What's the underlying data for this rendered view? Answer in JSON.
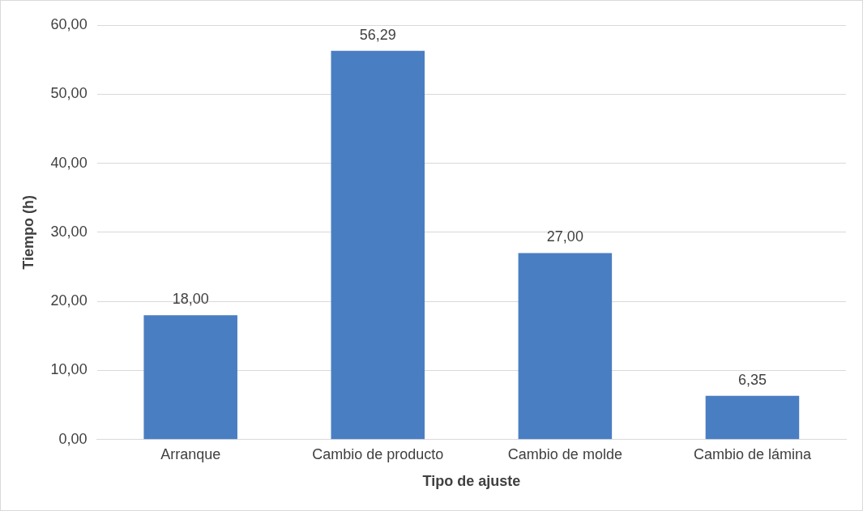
{
  "chart_data": {
    "type": "bar",
    "xlabel": "Tipo de ajuste",
    "ylabel": "Tiempo (h)",
    "categories": [
      "Arranque",
      "Cambio de producto",
      "Cambio de molde",
      "Cambio de lámina"
    ],
    "values": [
      18,
      56.29,
      27,
      6.35
    ],
    "value_labels": [
      "18,00",
      "56,29",
      "27,00",
      "6,35"
    ],
    "color": "#4a7ec3",
    "ylim": [
      0,
      60
    ],
    "yticks": [
      {
        "value": 0,
        "label": "0,00"
      },
      {
        "value": 10,
        "label": "10,00"
      },
      {
        "value": 20,
        "label": "20,00"
      },
      {
        "value": 30,
        "label": "30,00"
      },
      {
        "value": 40,
        "label": "40,00"
      },
      {
        "value": 50,
        "label": "50,00"
      },
      {
        "value": 60,
        "label": "60,00"
      }
    ],
    "grid": "y",
    "legend": false
  }
}
